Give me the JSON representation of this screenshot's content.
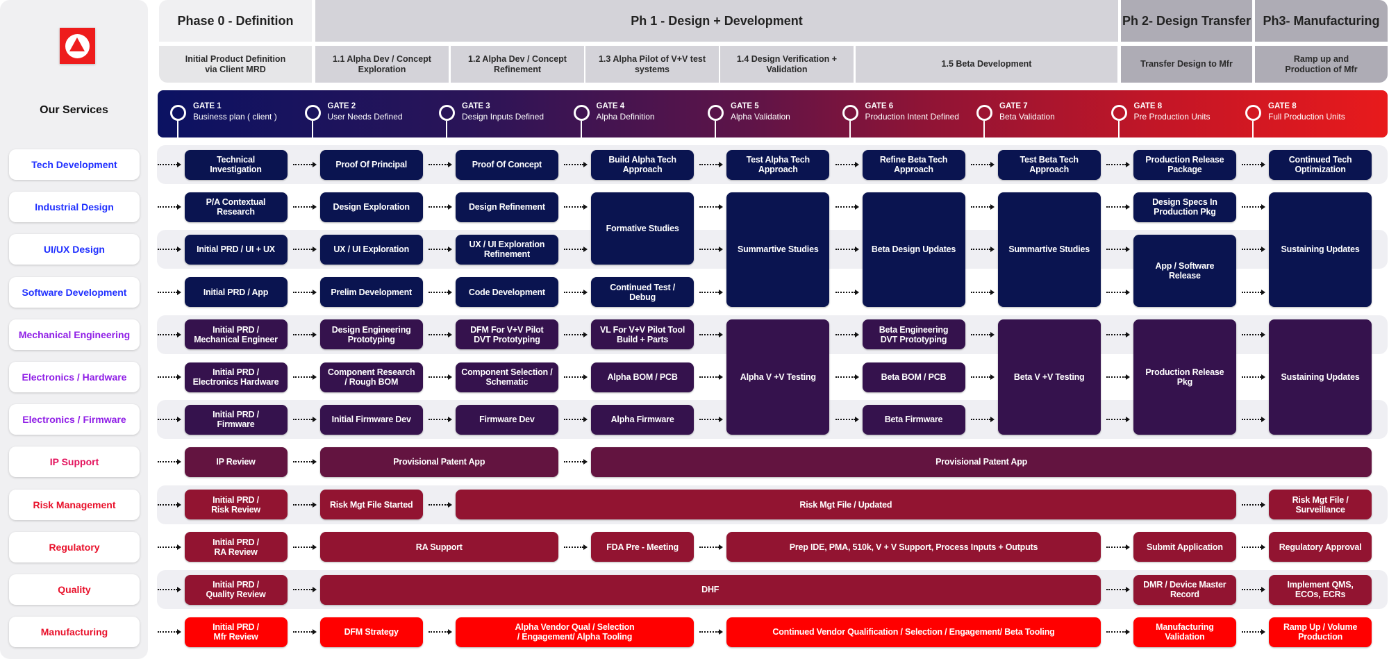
{
  "sidebar": {
    "logo": "triangle-logo",
    "heading": "Our Services"
  },
  "phases": [
    {
      "label": "Phase 0 - Definition",
      "color": "#f0f0f2"
    },
    {
      "label": "Ph 1 - Design + Development",
      "color": "#d4d3d9"
    },
    {
      "label": "Ph 2- Design Transfer",
      "color": "#aeacb5"
    },
    {
      "label": "Ph3- Manufacturing",
      "color": "#aeacb5"
    }
  ],
  "subphases": [
    {
      "label": "Initial Product Definition\nvia Client MRD",
      "color": "#e6e6e8"
    },
    {
      "label": "1.1 Alpha Dev / Concept\nExploration",
      "color": "#d4d3d9"
    },
    {
      "label": "1.2 Alpha Dev / Concept\nRefinement",
      "color": "#d4d3d9"
    },
    {
      "label": "1.3  Alpha Pilot of V+V test\nsystems",
      "color": "#d4d3d9"
    },
    {
      "label": "1.4 Design Verification +\nValidation",
      "color": "#d4d3d9"
    },
    {
      "label": "1.5 Beta Development",
      "color": "#d4d3d9"
    },
    {
      "label": "Transfer Design to Mfr",
      "color": "#aeacb5"
    },
    {
      "label": "Ramp up and\nProduction of Mfr",
      "color": "#aeacb5"
    }
  ],
  "gates": [
    {
      "title": "GATE 1",
      "label": "Business plan ( client )"
    },
    {
      "title": "GATE 2",
      "label": "User Needs Defined"
    },
    {
      "title": "GATE 3",
      "label": "Design Inputs Defined"
    },
    {
      "title": "GATE 4",
      "label": "Alpha Definition"
    },
    {
      "title": "GATE 5",
      "label": "Alpha Validation"
    },
    {
      "title": "GATE 6",
      "label": "Production Intent Defined"
    },
    {
      "title": "GATE 7",
      "label": "Beta Validation"
    },
    {
      "title": "GATE 8",
      "label": "Pre Production Units"
    },
    {
      "title": "GATE 8",
      "label": "Full Production Units"
    }
  ],
  "colors": {
    "navy": "#0a1450",
    "purple": "#35124d",
    "ip": "#631440",
    "crimson": "#921431",
    "red": "#ff0000",
    "label_blue": "#1f2fff",
    "label_purple": "#8f1ee6",
    "label_pink": "#e3125c",
    "label_red": "#e8102a"
  },
  "rows": [
    {
      "service": "Tech Development",
      "label_color": "#1f2fff",
      "box_color": "#0a1450",
      "boxes": [
        "Technical\nInvestigation",
        "Proof Of Principal",
        "Proof Of Concept",
        "Build Alpha Tech\nApproach",
        "Test Alpha Tech\nApproach",
        "Refine Beta Tech\nApproach",
        "Test Beta Tech\nApproach",
        "Production Release\nPackage",
        "Continued Tech\nOptimization"
      ]
    },
    {
      "service": "Industrial Design",
      "label_color": "#1f2fff",
      "box_color": "#0a1450",
      "boxes": [
        "P/A Contextual\nResearch",
        "Design Exploration",
        "Design Refinement",
        "Formative Studies",
        "Summartive Studies",
        "Beta Design Updates",
        "Summartive Studies",
        "Design Specs In\nProduction Pkg",
        "Sustaining Updates"
      ]
    },
    {
      "service": "UI/UX Design",
      "label_color": "#1f2fff",
      "box_color": "#0a1450",
      "boxes": [
        "Initial PRD / UI + UX",
        "UX / UI Exploration",
        "UX / UI Exploration\nRefinement",
        "App / Software\nRelease"
      ]
    },
    {
      "service": "Software Development",
      "label_color": "#1f2fff",
      "box_color": "#0a1450",
      "boxes": [
        "Initial PRD / App",
        "Prelim Development",
        "Code Development",
        "Continued Test /\nDebug"
      ]
    },
    {
      "service": "Mechanical Engineering",
      "label_color": "#8f1ee6",
      "box_color": "#35124d",
      "boxes": [
        "Initial PRD /\nMechanical Engineer",
        "Design Engineering\nPrototyping",
        "DFM For V+V Pilot\nDVT Prototyping",
        "VL For V+V Pilot Tool\nBuild + Parts",
        "Alpha V +V Testing",
        "Beta Engineering\nDVT Prototyping",
        "Beta V +V Testing",
        "Production Release\nPkg",
        "Sustaining Updates"
      ]
    },
    {
      "service": "Electronics / Hardware",
      "label_color": "#8f1ee6",
      "box_color": "#35124d",
      "boxes": [
        "Initial PRD /\nElectronics  Hardware",
        "Component Research\n/ Rough BOM",
        "Component Selection /\nSchematic",
        "Alpha BOM / PCB",
        "Beta BOM / PCB"
      ]
    },
    {
      "service": "Electronics / Firmware",
      "label_color": "#8f1ee6",
      "box_color": "#35124d",
      "boxes": [
        "Initial PRD /\nFirmware",
        "Initial Firmware Dev",
        "Firmware Dev",
        "Alpha Firmware",
        "Beta Firmware"
      ]
    },
    {
      "service": "IP Support",
      "label_color": "#e3125c",
      "box_color": "#631440",
      "boxes": [
        "IP Review",
        "Provisional Patent App",
        "Provisional Patent App"
      ]
    },
    {
      "service": "Risk Management",
      "label_color": "#e8102a",
      "box_color": "#921431",
      "boxes": [
        "Initial PRD /\nRisk Review",
        "Risk Mgt File Started",
        "Risk Mgt File / Updated",
        "Risk Mgt File /\nSurveillance"
      ]
    },
    {
      "service": "Regulatory",
      "label_color": "#e8102a",
      "box_color": "#921431",
      "boxes": [
        "Initial PRD /\nRA Review",
        "RA Support",
        "FDA Pre - Meeting",
        "Prep IDE, PMA, 510k, V + V Support, Process Inputs + Outputs",
        "Submit Application",
        "Regulatory Approval"
      ]
    },
    {
      "service": "Quality",
      "label_color": "#e8102a",
      "box_color": "#921431",
      "boxes": [
        "Initial PRD /\nQuality Review",
        "DHF",
        "DMR / Device Master\nRecord",
        "Implement QMS,\nECOs, ECRs"
      ]
    },
    {
      "service": "Manufacturing",
      "label_color": "#e8102a",
      "box_color": "#ff0000",
      "boxes": [
        "Initial PRD /\nMfr Review",
        "DFM Strategy",
        "Alpha Vendor Qual / Selection\n/ Engagement/ Alpha Tooling",
        "Continued Vendor Qualification / Selection / Engagement/ Beta Tooling",
        "Manufacturing\nValidation",
        "Ramp Up / Volume\nProduction"
      ]
    }
  ]
}
